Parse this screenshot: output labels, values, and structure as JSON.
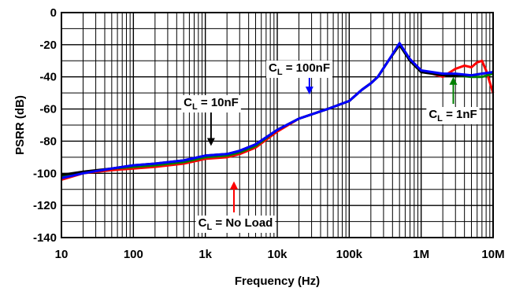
{
  "chart_data": {
    "type": "line",
    "xscale": "log",
    "xlim": [
      10,
      10000000
    ],
    "ylim": [
      -140,
      0
    ],
    "xlabel": "Frequency (Hz)",
    "ylabel": "PSRR (dB)",
    "xticks": [
      "10",
      "100",
      "1k",
      "10k",
      "100k",
      "1M",
      "10M"
    ],
    "yticks": [
      "0",
      "-20",
      "-40",
      "-60",
      "-80",
      "-100",
      "-120",
      "-140"
    ],
    "grid": true,
    "series": [
      {
        "name": "CL = No Load",
        "color": "#ff0000",
        "x": [
          10,
          20,
          50,
          100,
          200,
          500,
          1000,
          2000,
          3000,
          5000,
          10000,
          20000,
          50000,
          100000,
          150000,
          200000,
          250000,
          350000,
          500000,
          700000,
          1000000,
          2000000,
          3000000,
          4000000,
          5000000,
          6000000,
          7000000,
          8000000,
          10000000
        ],
        "y": [
          -104,
          -100,
          -98,
          -97,
          -96,
          -94,
          -91,
          -90,
          -88,
          -84,
          -74,
          -66,
          -60,
          -55,
          -48,
          -44,
          -40,
          -30,
          -20,
          -29,
          -36,
          -40,
          -35,
          -33,
          -34,
          -31,
          -30,
          -36,
          -50
        ]
      },
      {
        "name": "CL = 1nF",
        "color": "#008000",
        "x": [
          10,
          20,
          50,
          100,
          200,
          500,
          1000,
          2000,
          3000,
          5000,
          10000,
          20000,
          50000,
          100000,
          150000,
          200000,
          250000,
          350000,
          500000,
          700000,
          1000000,
          2000000,
          3000000,
          5000000,
          7000000,
          10000000
        ],
        "y": [
          -102,
          -100,
          -97,
          -96,
          -95,
          -93,
          -90,
          -89,
          -87,
          -83,
          -73,
          -66,
          -60,
          -55,
          -48,
          -44,
          -40,
          -30,
          -20,
          -30,
          -37,
          -38,
          -39,
          -40,
          -40,
          -38
        ]
      },
      {
        "name": "CL = 10nF",
        "color": "#000000",
        "x": [
          10,
          20,
          50,
          100,
          200,
          500,
          1000,
          2000,
          3000,
          5000,
          10000,
          20000,
          50000,
          100000,
          150000,
          200000,
          250000,
          350000,
          500000,
          700000,
          1000000,
          2000000,
          3000000,
          5000000,
          7000000,
          10000000
        ],
        "y": [
          -101,
          -99,
          -97,
          -95,
          -94,
          -92,
          -89,
          -88,
          -86,
          -82,
          -73,
          -66,
          -60,
          -55,
          -48,
          -44,
          -40,
          -30,
          -20,
          -30,
          -37,
          -39,
          -39,
          -39,
          -38,
          -37
        ]
      },
      {
        "name": "CL = 100nF",
        "color": "#0000ff",
        "x": [
          10,
          20,
          50,
          100,
          200,
          500,
          1000,
          2000,
          3000,
          5000,
          10000,
          20000,
          50000,
          100000,
          150000,
          200000,
          250000,
          350000,
          500000,
          700000,
          1000000,
          2000000,
          3000000,
          5000000,
          7000000,
          10000000
        ],
        "y": [
          -103,
          -100,
          -97,
          -95,
          -94,
          -92,
          -89,
          -88,
          -86,
          -82,
          -73,
          -66,
          -60,
          -55,
          -48,
          -44,
          -40,
          -30,
          -19,
          -29,
          -36,
          -38,
          -38,
          -39,
          -38,
          -37
        ]
      }
    ],
    "annotations": [
      {
        "text": "C",
        "sub": "L",
        "rest": " = 100nF",
        "arrow_color": "#0000ff",
        "x": 28000,
        "y": -50
      },
      {
        "text": "C",
        "sub": "L",
        "rest": " = 10nF",
        "arrow_color": "#000000",
        "x": 1200,
        "y": -82
      },
      {
        "text": "C",
        "sub": "L",
        "rest": " = 1nF",
        "arrow_color": "#008000",
        "x": 2800000,
        "y": -41
      },
      {
        "text": "C",
        "sub": "L",
        "rest": " = No Load",
        "arrow_color": "#ff0000",
        "x": 2500,
        "y": -106
      }
    ]
  }
}
